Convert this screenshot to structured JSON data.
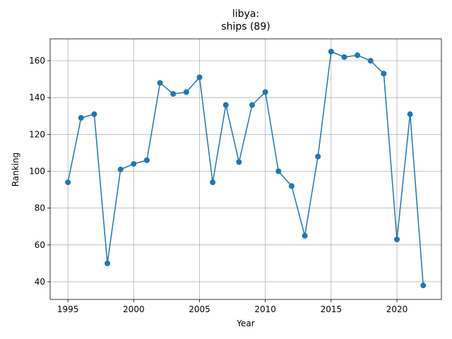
{
  "chart_data": {
    "type": "line",
    "title": [
      "libya:",
      "ships (89)"
    ],
    "x_label": "Year",
    "y_label": "Ranking",
    "x": [
      1995,
      1996,
      1997,
      1998,
      1999,
      2000,
      2001,
      2002,
      2003,
      2004,
      2005,
      2006,
      2007,
      2008,
      2009,
      2010,
      2011,
      2012,
      2013,
      2014,
      2015,
      2016,
      2017,
      2018,
      2019,
      2020,
      2021,
      2022
    ],
    "series": [
      {
        "color": "#1f77b4",
        "marker": "circle",
        "values": [
          94,
          129,
          131,
          50,
          101,
          104,
          106,
          148,
          142,
          143,
          151,
          94,
          136,
          105,
          136,
          143,
          100,
          92,
          65,
          108,
          165,
          162,
          163,
          160,
          153,
          63,
          131,
          38
        ]
      }
    ],
    "xlim": [
      1993.65,
      2023.38
    ],
    "ylim": [
      30.4,
      171.9
    ],
    "xticks": [
      1995,
      2000,
      2005,
      2010,
      2015,
      2020
    ],
    "yticks": [
      40,
      60,
      80,
      100,
      120,
      140,
      160
    ],
    "grid": true
  }
}
